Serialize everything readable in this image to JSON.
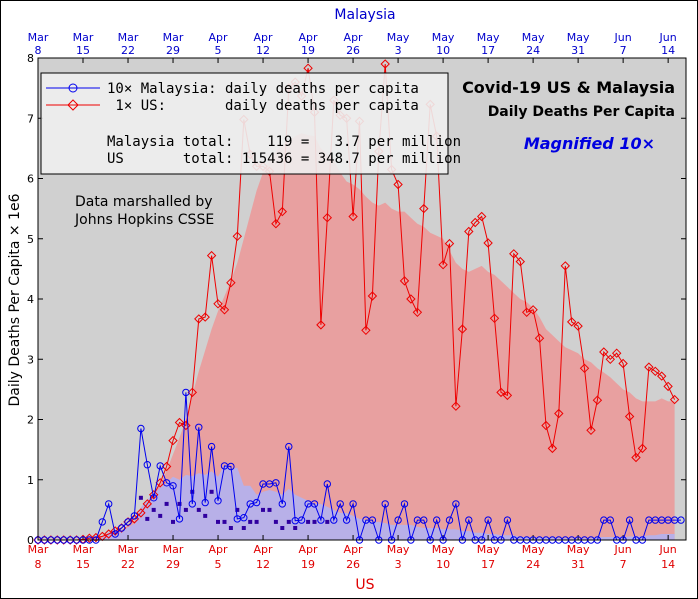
{
  "chart_data": {
    "type": "line",
    "title": "Covid-19 US & Malaysia",
    "subtitle": "Daily Deaths Per Capita",
    "annotation": "Magnified 10×",
    "source_note": [
      "Data marshalled by",
      "Johns Hopkins CSSE"
    ],
    "xlabel_top": "Malaysia",
    "xlabel_bottom": "US",
    "ylabel": "Daily Deaths Per Capita × 1e6",
    "ylim": [
      0,
      8
    ],
    "yticks": [
      "0",
      "1",
      "2",
      "3",
      "4",
      "5",
      "6",
      "7",
      "8"
    ],
    "x_start_date": "Mar 8",
    "x_end_date": "Jun 16",
    "xticks": [
      {
        "month": "Mar",
        "day": "8"
      },
      {
        "month": "Mar",
        "day": "15"
      },
      {
        "month": "Mar",
        "day": "22"
      },
      {
        "month": "Mar",
        "day": "29"
      },
      {
        "month": "Apr",
        "day": "5"
      },
      {
        "month": "Apr",
        "day": "12"
      },
      {
        "month": "Apr",
        "day": "19"
      },
      {
        "month": "Apr",
        "day": "26"
      },
      {
        "month": "May",
        "day": "3"
      },
      {
        "month": "May",
        "day": "10"
      },
      {
        "month": "May",
        "day": "17"
      },
      {
        "month": "May",
        "day": "24"
      },
      {
        "month": "May",
        "day": "31"
      },
      {
        "month": "Jun",
        "day": "7"
      },
      {
        "month": "Jun",
        "day": "14"
      }
    ],
    "legend": [
      {
        "text": "10× Malaysia: daily deaths per capita"
      },
      {
        "text": " 1× US:       daily deaths per capita"
      }
    ],
    "totals": [
      "Malaysia total:    119 =   3.7 per million",
      "US       total: 115436 = 348.7 per million"
    ],
    "colors": {
      "us": "#ee0000",
      "malaysia": "#0000ee",
      "us_fill": "#e8a0a0",
      "malaysia_fill": "#b8b0e8",
      "background": "#d0d0d0",
      "malaysia_daily_marker": "#3000a0"
    },
    "series": [
      {
        "name": "10× Malaysia: daily deaths per capita",
        "values": [
          0,
          0,
          0,
          0,
          0,
          0,
          0,
          0,
          0,
          0,
          0.3,
          0.6,
          0.1,
          0.2,
          0.3,
          0.4,
          1.85,
          1.25,
          0.7,
          1.23,
          0.95,
          0.9,
          0.35,
          2.45,
          0.6,
          1.87,
          0.62,
          1.55,
          0.65,
          1.23,
          1.22,
          0.35,
          0.37,
          0.6,
          0.62,
          0.93,
          0.93,
          0.95,
          0.6,
          1.55,
          0.32,
          0.33,
          0.6,
          0.6,
          0.33,
          0.93,
          0.33,
          0.6,
          0.33,
          0.6,
          0,
          0.33,
          0.33,
          0,
          0.6,
          0,
          0.33,
          0.6,
          0,
          0.33,
          0.33,
          0,
          0.33,
          0,
          0.33,
          0.6,
          0,
          0.33,
          0,
          0,
          0.33,
          0,
          0,
          0.33,
          0,
          0,
          0,
          0,
          0,
          0,
          0,
          0,
          0,
          0,
          0,
          0,
          0,
          0,
          0.33,
          0.33,
          0,
          0,
          0.33,
          0,
          0,
          0.33,
          0.33,
          0.33,
          0.33,
          0.33,
          0.33
        ]
      },
      {
        "name": "1× US: daily deaths per capita",
        "values": [
          0,
          0,
          0,
          0,
          0,
          0,
          0,
          0.01,
          0.03,
          0.04,
          0.06,
          0.1,
          0.15,
          0.2,
          0.3,
          0.35,
          0.45,
          0.6,
          0.75,
          0.95,
          1.22,
          1.65,
          1.95,
          1.9,
          2.45,
          3.67,
          3.7,
          4.72,
          3.92,
          3.82,
          4.27,
          5.04,
          6.98,
          6.4,
          6.2,
          6.2,
          6.12,
          5.25,
          5.45,
          7.5,
          7.6,
          7.37,
          7.83,
          7.1,
          3.57,
          5.35,
          7.3,
          7.05,
          7.0,
          5.37,
          6.95,
          3.48,
          4.05,
          6.45,
          7.9,
          6.15,
          5.9,
          4.3,
          4.0,
          3.78,
          5.5,
          7.23,
          6.7,
          4.57,
          4.92,
          2.22,
          3.5,
          5.12,
          5.27,
          5.37,
          4.93,
          3.68,
          2.45,
          2.4,
          4.75,
          4.62,
          3.78,
          3.82,
          3.35,
          1.9,
          1.52,
          2.1,
          4.55,
          3.62,
          3.55,
          2.85,
          1.82,
          2.32,
          3.12,
          3.0,
          3.1,
          2.93,
          2.05,
          1.37,
          1.52,
          2.87,
          2.8,
          2.72,
          2.55,
          2.33
        ]
      },
      {
        "name": "US 7-day average",
        "values": [
          0,
          0,
          0,
          0,
          0,
          0,
          0,
          0.01,
          0.02,
          0.03,
          0.05,
          0.08,
          0.12,
          0.17,
          0.24,
          0.32,
          0.42,
          0.55,
          0.72,
          0.92,
          1.15,
          1.42,
          1.7,
          2.0,
          2.4,
          2.8,
          3.15,
          3.5,
          3.8,
          4.05,
          4.3,
          4.6,
          5.0,
          5.4,
          5.8,
          6.1,
          6.3,
          6.45,
          6.55,
          6.62,
          6.7,
          6.75,
          6.72,
          6.7,
          6.5,
          6.4,
          6.3,
          6.1,
          5.95,
          5.9,
          5.82,
          5.7,
          5.6,
          5.55,
          5.6,
          5.5,
          5.45,
          5.45,
          5.35,
          5.25,
          5.2,
          5.1,
          5.05,
          5.0,
          4.8,
          4.6,
          4.5,
          4.45,
          4.5,
          4.55,
          4.45,
          4.4,
          4.3,
          4.2,
          4.1,
          4.0,
          3.95,
          3.85,
          3.7,
          3.5,
          3.4,
          3.3,
          3.2,
          3.15,
          3.1,
          3.0,
          2.95,
          2.85,
          2.78,
          2.7,
          2.6,
          2.5,
          2.45,
          2.35,
          2.3,
          2.3,
          2.3,
          2.35,
          2.3,
          2.3
        ]
      },
      {
        "name": "Malaysia 7-day average",
        "values": [
          0,
          0,
          0,
          0,
          0,
          0,
          0,
          0,
          0,
          0,
          0.04,
          0.13,
          0.14,
          0.17,
          0.21,
          0.27,
          0.54,
          0.67,
          0.76,
          0.87,
          0.95,
          1.05,
          1.0,
          1.08,
          1.06,
          1.11,
          1.08,
          1.14,
          1.05,
          1.25,
          1.18,
          1.2,
          0.9,
          0.9,
          0.75,
          0.8,
          0.83,
          0.8,
          0.75,
          0.85,
          0.75,
          0.7,
          0.65,
          0.6,
          0.6,
          0.55,
          0.5,
          0.45,
          0.45,
          0.4,
          0.35,
          0.33,
          0.3,
          0.3,
          0.28,
          0.25,
          0.25,
          0.25,
          0.25,
          0.22,
          0.2,
          0.2,
          0.2,
          0.18,
          0.18,
          0.18,
          0.15,
          0.15,
          0.12,
          0.12,
          0.1,
          0.1,
          0.08,
          0.08,
          0.08,
          0.05,
          0.05,
          0.04,
          0.04,
          0.04,
          0.04,
          0.03,
          0.03,
          0.03,
          0.03,
          0.03,
          0.03,
          0.05,
          0.05,
          0.05,
          0.05,
          0.05,
          0.06,
          0.06,
          0.06,
          0.08,
          0.08,
          0.1,
          0.1,
          0.1
        ]
      },
      {
        "name": "Malaysia daily deaths (unmagnified marker row)",
        "values": [
          0,
          0,
          0,
          0,
          0,
          0,
          0,
          0,
          0,
          0,
          0,
          0,
          0,
          0,
          0,
          0,
          0.7,
          0.35,
          0.5,
          0.4,
          0.6,
          0.3,
          0.6,
          0.5,
          0.8,
          0.5,
          0.4,
          0.8,
          0.3,
          0.3,
          0.2,
          0.5,
          0.2,
          0.3,
          0.3,
          0.5,
          0.5,
          0.3,
          0.2,
          0.3,
          0.2,
          0,
          0.3,
          0.3,
          0,
          0.3,
          0,
          0,
          0,
          0,
          0,
          0,
          0,
          0,
          0,
          0,
          0,
          0,
          0,
          0,
          0,
          0,
          0,
          0,
          0,
          0,
          0,
          0,
          0,
          0,
          0,
          0,
          0,
          0,
          0,
          0,
          0,
          0,
          0,
          0,
          0,
          0,
          0,
          0,
          0,
          0,
          0,
          0,
          0,
          0,
          0,
          0,
          0,
          0,
          0,
          0,
          0,
          0,
          0,
          0
        ]
      }
    ]
  }
}
